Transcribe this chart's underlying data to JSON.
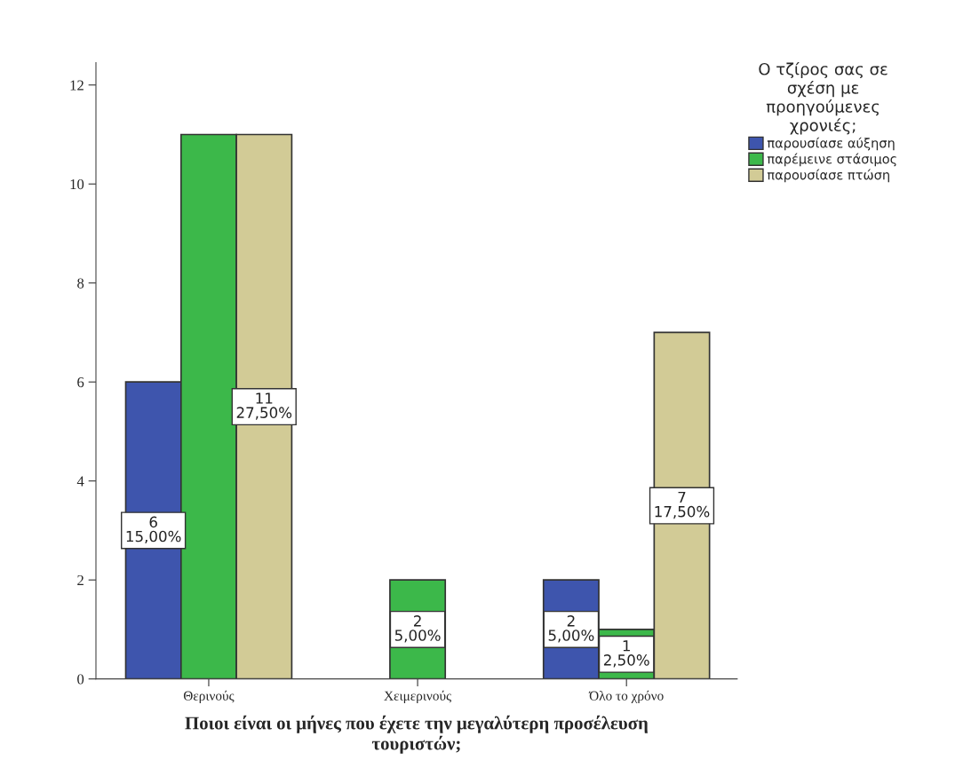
{
  "chart_data": {
    "type": "bar",
    "xlabel": "Ποιοι είναι οι μήνες που έχετε την μεγαλύτερη προσέλευση\nτουριστών;",
    "legend_title": "Ο τζίρος σας σε\nσχέση με\nπροηγούμενες\nχρονιές;",
    "categories": [
      "Θερινούς",
      "Χειμερινούς",
      "Όλο το χρόνο"
    ],
    "series": [
      {
        "name": "παρουσίασε αύξηση",
        "color": "#3e55ad",
        "values": [
          6,
          null,
          2
        ],
        "value_labels": [
          "6\n15,00%",
          null,
          "2\n5,00%"
        ]
      },
      {
        "name": "παρέμεινε στάσιμος",
        "color": "#3cb84a",
        "values": [
          11,
          2,
          1
        ],
        "value_labels": [
          null,
          "2\n5,00%",
          "1\n2,50%"
        ]
      },
      {
        "name": "παρουσίασε πτώση",
        "color": "#d2cb96",
        "values": [
          11,
          null,
          7
        ],
        "value_labels": [
          "11\n27,50%",
          null,
          "7\n17,50%"
        ]
      }
    ],
    "ylim": [
      0,
      12.45
    ],
    "yticks": [
      0,
      2,
      4,
      6,
      8,
      10,
      12
    ],
    "grid": false,
    "legend": "top right"
  }
}
